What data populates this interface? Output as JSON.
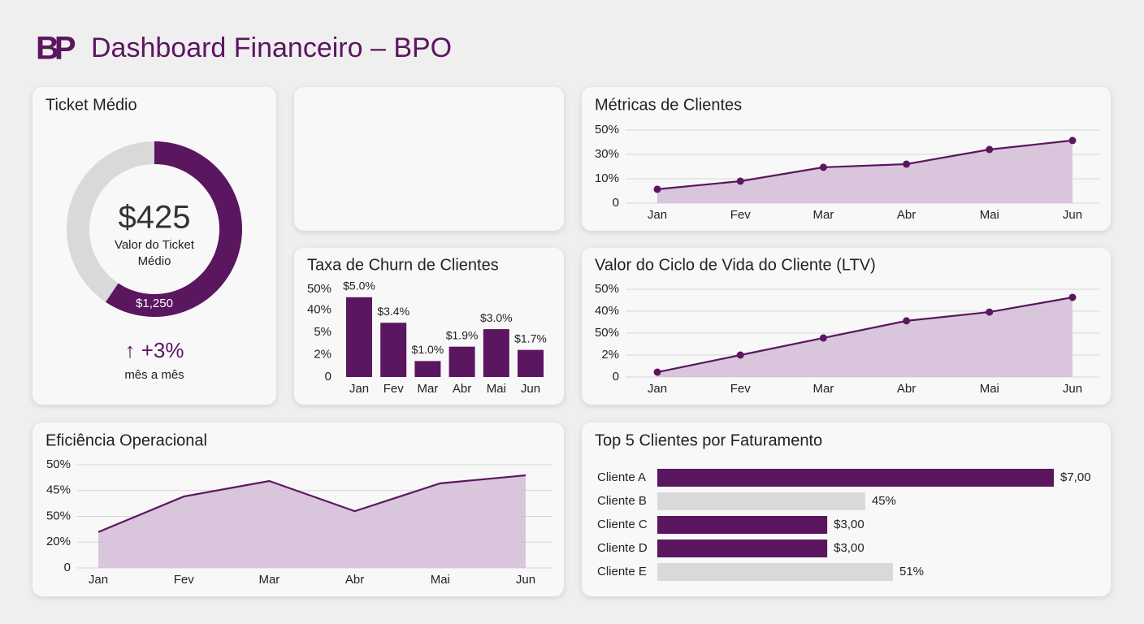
{
  "header": {
    "logo": "BP",
    "title": "Dashboard Financeiro – BPO"
  },
  "chart_data": [
    {
      "type": "donut",
      "title": "Ticket Médio",
      "values": [
        1250,
        855
      ],
      "value_labels": [
        "$1,250",
        null
      ],
      "colors": [
        "#5b1660",
        "#d9d9d9"
      ],
      "center_label": "$425",
      "center_caption": "Valor do Ticket Médio",
      "change": "↑ +3%",
      "change_caption": "mês a mês"
    },
    {
      "type": "area",
      "title": "Métricas de Clientes",
      "categories": [
        "Jan",
        "Fev",
        "Mar",
        "Abr",
        "Mai",
        "Jun"
      ],
      "values": [
        0.57,
        0.9,
        1.47,
        1.6,
        2.2,
        2.57
      ],
      "color": "#5b1660",
      "fill": "#d4bdd7",
      "markers": true,
      "grid": true,
      "ylim": [
        0,
        3
      ],
      "yticks": [
        0,
        {
          "value": 1,
          "label": "10%"
        },
        {
          "value": 2,
          "label": "30%"
        },
        {
          "value": 3,
          "label": "50%"
        }
      ]
    },
    {
      "type": "bar",
      "title": "Taxa de Churn de Clientes",
      "categories": [
        "Jan",
        "Fev",
        "Mar",
        "Abr",
        "Mai",
        "Jun"
      ],
      "values": [
        5.0,
        3.4,
        1.0,
        1.9,
        3.0,
        1.7
      ],
      "value_labels": [
        "$5.0%",
        "$3.4%",
        "$1.0%",
        "$1.9%",
        "$3.0%",
        "$1.7%"
      ],
      "color": "#5b1660",
      "grid": false,
      "ylim": [
        0,
        5.5
      ],
      "yticks": [
        0,
        {
          "value": 1.4,
          "label": "2%"
        },
        {
          "value": 2.8,
          "label": "5%"
        },
        {
          "value": 4.2,
          "label": "40%"
        },
        {
          "value": 5.5,
          "label": "50%"
        }
      ]
    },
    {
      "type": "area",
      "title": "Valor do Ciclo de Vida do Cliente (LTV)",
      "categories": [
        "Jan",
        "Fev",
        "Mar",
        "Abr",
        "Mai",
        "Jun"
      ],
      "values": [
        0.22,
        1.0,
        1.78,
        2.56,
        2.96,
        3.63
      ],
      "color": "#5b1660",
      "fill": "#d4bdd7",
      "markers": true,
      "grid": true,
      "ylim": [
        0,
        4
      ],
      "yticks": [
        0,
        {
          "value": 1,
          "label": "2%"
        },
        {
          "value": 2,
          "label": "50%"
        },
        {
          "value": 3,
          "label": "40%"
        },
        {
          "value": 4,
          "label": "50%"
        }
      ]
    },
    {
      "type": "area",
      "title": "Eficiência Operacional",
      "categories": [
        "Jan",
        "Fev",
        "Mar",
        "Abr",
        "Mai",
        "Jun"
      ],
      "values": [
        1.39,
        2.77,
        3.37,
        2.2,
        3.28,
        3.59
      ],
      "color": "#5b1660",
      "fill": "#d4bdd7",
      "markers": false,
      "grid": true,
      "ylim": [
        0,
        4
      ],
      "yticks": [
        0,
        {
          "value": 1,
          "label": "20%"
        },
        {
          "value": 2,
          "label": "50%"
        },
        {
          "value": 3,
          "label": "45%"
        },
        {
          "value": 4,
          "label": "50%"
        }
      ]
    },
    {
      "type": "hbar",
      "title": "Top 5 Clientes por Faturamento",
      "categories": [
        "Cliente A",
        "Cliente B",
        "Cliente C",
        "Cliente D",
        "Cliente E"
      ],
      "series": [
        {
          "color": "#5b1660",
          "values": [
            7.0,
            null,
            3.0,
            3.0,
            null
          ],
          "value_labels": [
            "$7,00",
            null,
            "$3,00",
            "$3,00",
            null
          ]
        },
        {
          "color": "#d9d9d9",
          "values": [
            null,
            45,
            null,
            null,
            51
          ],
          "value_labels": [
            null,
            "45%",
            null,
            null,
            "51%"
          ]
        }
      ]
    }
  ]
}
